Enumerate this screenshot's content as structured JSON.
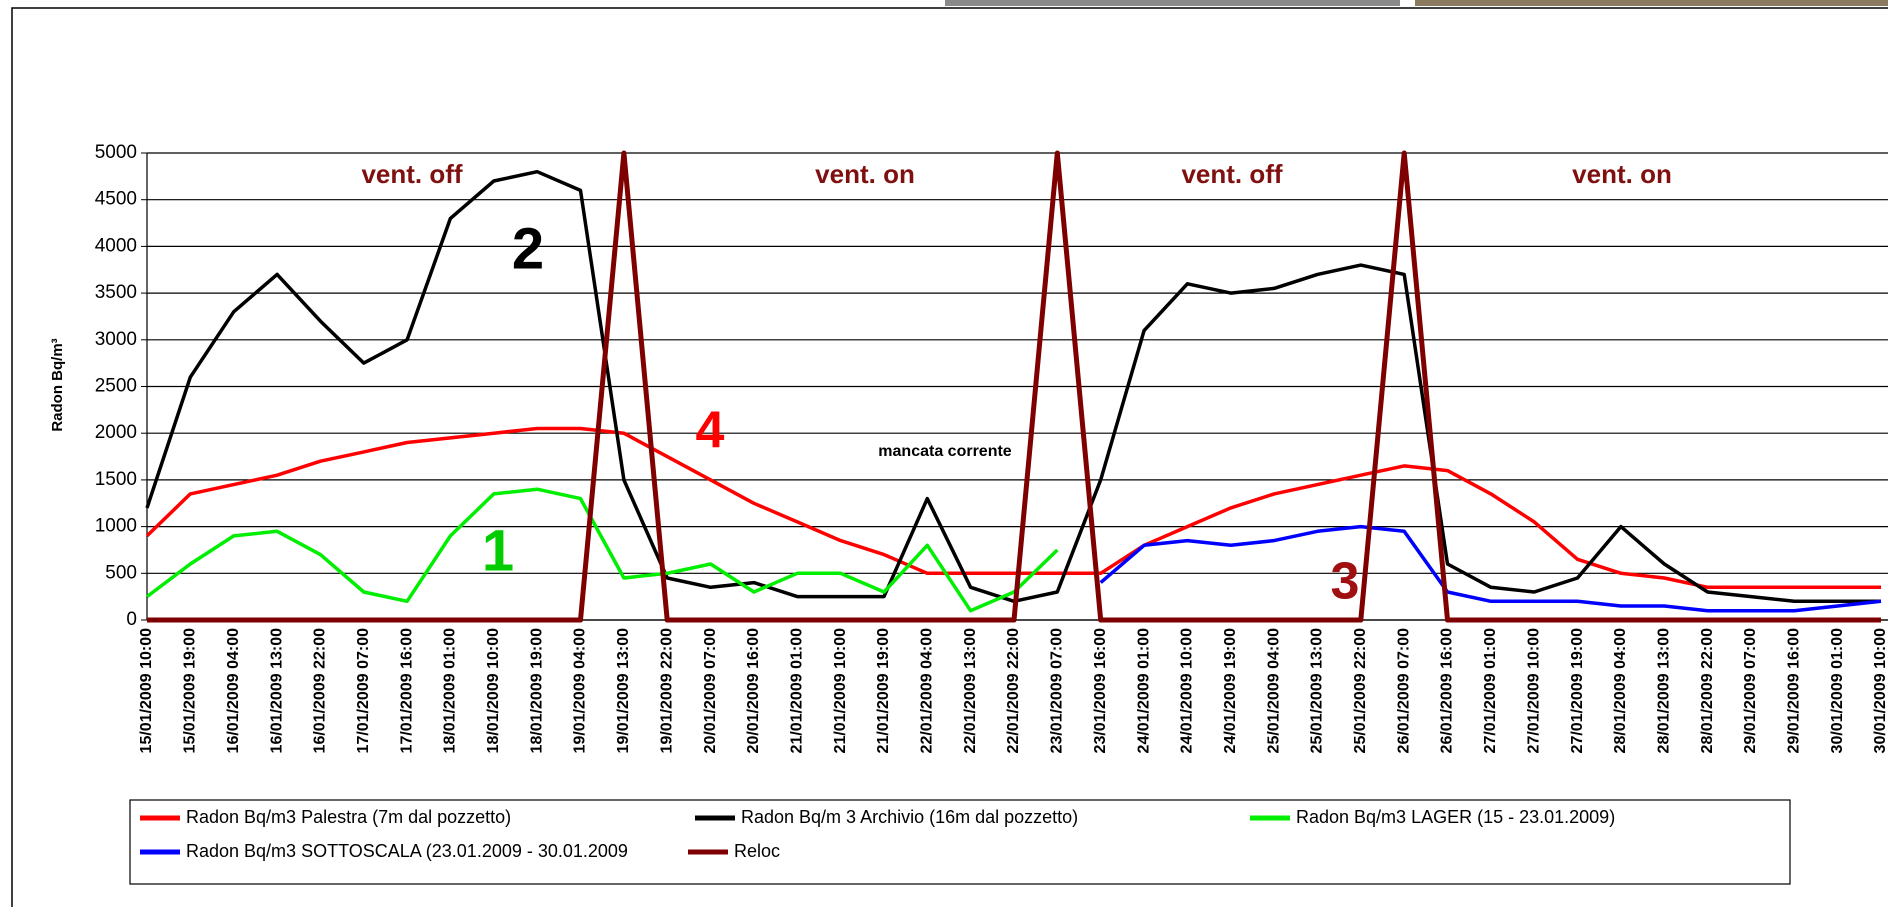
{
  "chart_data": {
    "type": "line",
    "y_label": "Radon Bq/m³",
    "categories": [
      "15/01/2009 10:00",
      "15/01/2009 19:00",
      "16/01/2009 04:00",
      "16/01/2009 13:00",
      "16/01/2009 22:00",
      "17/01/2009 07:00",
      "17/01/2009 16:00",
      "18/01/2009 01:00",
      "18/01/2009 10:00",
      "18/01/2009 19:00",
      "19/01/2009 04:00",
      "19/01/2009 13:00",
      "19/01/2009 22:00",
      "20/01/2009 07:00",
      "20/01/2009 16:00",
      "21/01/2009 01:00",
      "21/01/2009 10:00",
      "21/01/2009 19:00",
      "22/01/2009 04:00",
      "22/01/2009 13:00",
      "22/01/2009 22:00",
      "23/01/2009 07:00",
      "23/01/2009 16:00",
      "24/01/2009 01:00",
      "24/01/2009 10:00",
      "24/01/2009 19:00",
      "25/01/2009 04:00",
      "25/01/2009 13:00",
      "25/01/2009 22:00",
      "26/01/2009 07:00",
      "26/01/2009 16:00",
      "27/01/2009 01:00",
      "27/01/2009 10:00",
      "27/01/2009 19:00",
      "28/01/2009 04:00",
      "28/01/2009 13:00",
      "28/01/2009 22:00",
      "29/01/2009 07:00",
      "29/01/2009 16:00",
      "30/01/2009 01:00",
      "30/01/2009 10:00"
    ],
    "series": [
      {
        "name": "Radon Bq/m3 Palestra (7m dal pozzetto)",
        "color": "#ff0000",
        "values": [
          900,
          1350,
          1450,
          1550,
          1700,
          1800,
          1900,
          1950,
          2000,
          2050,
          2050,
          2000,
          1750,
          1500,
          1250,
          1050,
          850,
          700,
          500,
          500,
          500,
          500,
          500,
          800,
          1000,
          1200,
          1350,
          1450,
          1550,
          1650,
          1600,
          1350,
          1050,
          650,
          500,
          450,
          350,
          350,
          350,
          350,
          350
        ]
      },
      {
        "name": "Radon Bq/m 3 Archivio (16m dal pozzetto)",
        "color": "#000000",
        "values": [
          1200,
          2600,
          3300,
          3700,
          3200,
          2750,
          3000,
          4300,
          4700,
          4800,
          4600,
          1500,
          450,
          350,
          400,
          250,
          250,
          250,
          1300,
          350,
          200,
          300,
          1500,
          3100,
          3600,
          3500,
          3550,
          3700,
          3800,
          3700,
          600,
          350,
          300,
          450,
          1000,
          600,
          300,
          250,
          200,
          200,
          200
        ]
      },
      {
        "name": "Radon Bq/m3  LAGER (15 - 23.01.2009)",
        "color": "#00ee00",
        "values": [
          250,
          600,
          900,
          950,
          700,
          300,
          200,
          900,
          1350,
          1400,
          1300,
          450,
          500,
          600,
          300,
          500,
          500,
          300,
          800,
          100,
          300,
          750,
          null,
          null,
          null,
          null,
          null,
          null,
          null,
          null,
          null,
          null,
          null,
          null,
          null,
          null,
          null,
          null,
          null,
          null,
          null
        ]
      },
      {
        "name": "Radon Bq/m3 SOTTOSCALA (23.01.2009 - 30.01.2009",
        "color": "#0000ff",
        "values": [
          null,
          null,
          null,
          null,
          null,
          null,
          null,
          null,
          null,
          null,
          null,
          null,
          null,
          null,
          null,
          null,
          null,
          null,
          null,
          null,
          null,
          null,
          400,
          800,
          850,
          800,
          850,
          950,
          1000,
          950,
          300,
          200,
          200,
          200,
          150,
          150,
          100,
          100,
          100,
          150,
          200
        ]
      },
      {
        "name": "Reloc",
        "color": "#7f0000",
        "values": [
          0,
          0,
          0,
          0,
          0,
          0,
          0,
          0,
          0,
          0,
          0,
          5000,
          0,
          0,
          0,
          0,
          0,
          0,
          0,
          0,
          0,
          5000,
          0,
          0,
          0,
          0,
          0,
          0,
          0,
          5000,
          0,
          0,
          0,
          0,
          0,
          0,
          0,
          0,
          0,
          0,
          0
        ]
      }
    ],
    "ylim": [
      0,
      5000
    ],
    "yticks": [
      0,
      500,
      1000,
      1500,
      2000,
      2500,
      3000,
      3500,
      4000,
      4500,
      5000
    ],
    "grid": true,
    "annotations": [
      "vent. off",
      "vent. on",
      "vent. off",
      "vent. on",
      "2",
      "4",
      "1",
      "3",
      "mancata corrente"
    ]
  }
}
